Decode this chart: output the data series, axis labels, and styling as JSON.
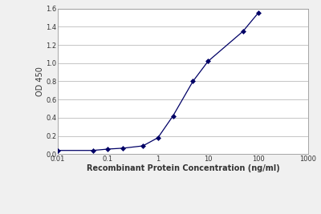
{
  "x": [
    0.01,
    0.05,
    0.1,
    0.2,
    0.5,
    1.0,
    2.0,
    5.0,
    10.0,
    50.0,
    100.0
  ],
  "y": [
    0.04,
    0.04,
    0.055,
    0.065,
    0.09,
    0.18,
    0.42,
    0.8,
    1.02,
    1.35,
    1.55
  ],
  "xlim": [
    0.01,
    1000
  ],
  "ylim": [
    0.0,
    1.6
  ],
  "yticks": [
    0.0,
    0.2,
    0.4,
    0.6,
    0.8,
    1.0,
    1.2,
    1.4,
    1.6
  ],
  "xtick_positions": [
    0.01,
    0.1,
    1,
    10,
    100,
    1000
  ],
  "xtick_labels": [
    "0.01",
    "0.1",
    "1",
    "10",
    "100",
    "1000"
  ],
  "ylabel": "OD 450",
  "xlabel": "Recombinant Protein Concentration (ng/ml)",
  "line_color": "#000066",
  "marker_color": "#000066",
  "marker": "D",
  "marker_size": 3,
  "line_width": 0.9,
  "background_color": "#f0f0f0",
  "plot_bg_color": "#ffffff",
  "grid_color": "#bbbbbb",
  "font_color": "#333333",
  "tick_fontsize": 6,
  "xlabel_fontsize": 7,
  "ylabel_fontsize": 7
}
